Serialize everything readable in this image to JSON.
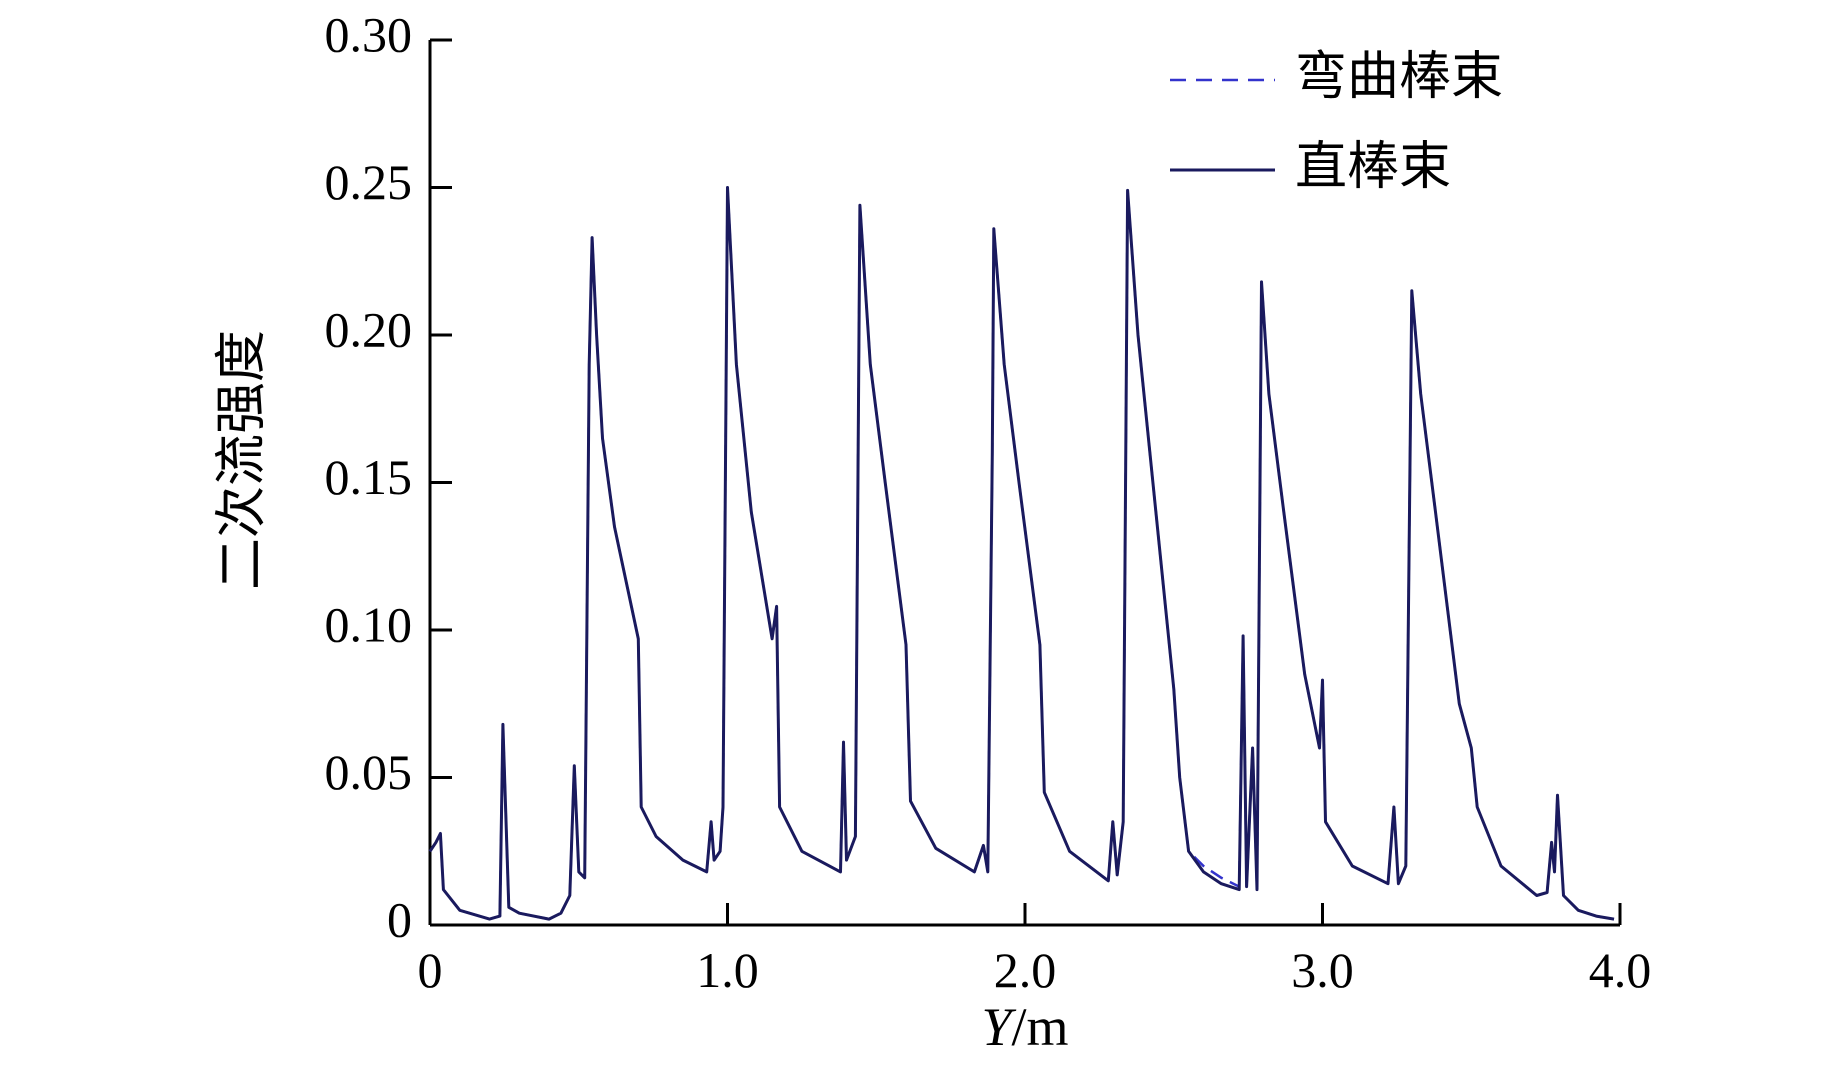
{
  "chart_data": {
    "type": "line",
    "xlabel_var": "Y",
    "xlabel_unit": "/m",
    "ylabel": "二次流强度",
    "xlim": [
      0,
      4.0
    ],
    "ylim": [
      0,
      0.3
    ],
    "xticks": [
      0,
      1.0,
      2.0,
      3.0,
      4.0
    ],
    "xtick_labels": [
      "0",
      "1.0",
      "2.0",
      "3.0",
      "4.0"
    ],
    "yticks": [
      0,
      0.05,
      0.1,
      0.15,
      0.2,
      0.25,
      0.3
    ],
    "ytick_labels": [
      "0",
      "0.05",
      "0.10",
      "0.15",
      "0.20",
      "0.25",
      "0.30"
    ],
    "grid": false,
    "legend_position": "top-right",
    "series": [
      {
        "name": "弯曲棒束",
        "style": "dashed",
        "color": "#3333cc",
        "points": [
          [
            0.0,
            0.025
          ],
          [
            0.02,
            0.028
          ],
          [
            0.035,
            0.031
          ],
          [
            0.045,
            0.012
          ],
          [
            0.1,
            0.005
          ],
          [
            0.2,
            0.002
          ],
          [
            0.235,
            0.003
          ],
          [
            0.245,
            0.068
          ],
          [
            0.265,
            0.006
          ],
          [
            0.3,
            0.004
          ],
          [
            0.4,
            0.002
          ],
          [
            0.44,
            0.004
          ],
          [
            0.47,
            0.01
          ],
          [
            0.485,
            0.054
          ],
          [
            0.5,
            0.018
          ],
          [
            0.52,
            0.016
          ],
          [
            0.535,
            0.19
          ],
          [
            0.545,
            0.233
          ],
          [
            0.56,
            0.2
          ],
          [
            0.58,
            0.165
          ],
          [
            0.62,
            0.135
          ],
          [
            0.7,
            0.097
          ],
          [
            0.71,
            0.04
          ],
          [
            0.76,
            0.03
          ],
          [
            0.85,
            0.022
          ],
          [
            0.93,
            0.018
          ],
          [
            0.945,
            0.035
          ],
          [
            0.955,
            0.022
          ],
          [
            0.975,
            0.025
          ],
          [
            0.985,
            0.04
          ],
          [
            1.0,
            0.25
          ],
          [
            1.03,
            0.19
          ],
          [
            1.08,
            0.14
          ],
          [
            1.15,
            0.097
          ],
          [
            1.165,
            0.108
          ],
          [
            1.175,
            0.04
          ],
          [
            1.25,
            0.025
          ],
          [
            1.38,
            0.018
          ],
          [
            1.39,
            0.062
          ],
          [
            1.4,
            0.022
          ],
          [
            1.43,
            0.03
          ],
          [
            1.445,
            0.244
          ],
          [
            1.48,
            0.19
          ],
          [
            1.53,
            0.15
          ],
          [
            1.6,
            0.095
          ],
          [
            1.615,
            0.042
          ],
          [
            1.7,
            0.026
          ],
          [
            1.83,
            0.018
          ],
          [
            1.86,
            0.027
          ],
          [
            1.875,
            0.018
          ],
          [
            1.89,
            0.16
          ],
          [
            1.895,
            0.236
          ],
          [
            1.93,
            0.19
          ],
          [
            1.98,
            0.15
          ],
          [
            2.05,
            0.095
          ],
          [
            2.065,
            0.045
          ],
          [
            2.15,
            0.025
          ],
          [
            2.28,
            0.015
          ],
          [
            2.295,
            0.035
          ],
          [
            2.31,
            0.017
          ],
          [
            2.33,
            0.035
          ],
          [
            2.345,
            0.249
          ],
          [
            2.38,
            0.2
          ],
          [
            2.43,
            0.15
          ],
          [
            2.5,
            0.08
          ],
          [
            2.52,
            0.05
          ],
          [
            2.55,
            0.025
          ],
          [
            2.6,
            0.02
          ],
          [
            2.66,
            0.016
          ],
          [
            2.72,
            0.013
          ],
          [
            2.733,
            0.098
          ],
          [
            2.745,
            0.013
          ],
          [
            2.765,
            0.06
          ],
          [
            2.78,
            0.012
          ],
          [
            2.795,
            0.218
          ],
          [
            2.82,
            0.18
          ],
          [
            2.87,
            0.14
          ],
          [
            2.94,
            0.085
          ],
          [
            2.99,
            0.06
          ],
          [
            3.0,
            0.083
          ],
          [
            3.01,
            0.035
          ],
          [
            3.1,
            0.02
          ],
          [
            3.22,
            0.014
          ],
          [
            3.24,
            0.04
          ],
          [
            3.255,
            0.014
          ],
          [
            3.28,
            0.02
          ],
          [
            3.3,
            0.215
          ],
          [
            3.33,
            0.18
          ],
          [
            3.38,
            0.14
          ],
          [
            3.46,
            0.075
          ],
          [
            3.5,
            0.06
          ],
          [
            3.52,
            0.04
          ],
          [
            3.6,
            0.02
          ],
          [
            3.72,
            0.01
          ],
          [
            3.755,
            0.011
          ],
          [
            3.77,
            0.028
          ],
          [
            3.78,
            0.018
          ],
          [
            3.79,
            0.044
          ],
          [
            3.81,
            0.01
          ],
          [
            3.86,
            0.005
          ],
          [
            3.92,
            0.003
          ],
          [
            3.98,
            0.002
          ]
        ]
      },
      {
        "name": "直棒束",
        "style": "solid",
        "color": "#1a1a5e",
        "points": [
          [
            0.0,
            0.025
          ],
          [
            0.02,
            0.028
          ],
          [
            0.035,
            0.031
          ],
          [
            0.045,
            0.012
          ],
          [
            0.1,
            0.005
          ],
          [
            0.2,
            0.002
          ],
          [
            0.235,
            0.003
          ],
          [
            0.245,
            0.068
          ],
          [
            0.265,
            0.006
          ],
          [
            0.3,
            0.004
          ],
          [
            0.4,
            0.002
          ],
          [
            0.44,
            0.004
          ],
          [
            0.47,
            0.01
          ],
          [
            0.485,
            0.054
          ],
          [
            0.5,
            0.018
          ],
          [
            0.52,
            0.016
          ],
          [
            0.535,
            0.19
          ],
          [
            0.545,
            0.233
          ],
          [
            0.56,
            0.2
          ],
          [
            0.58,
            0.165
          ],
          [
            0.62,
            0.135
          ],
          [
            0.7,
            0.097
          ],
          [
            0.71,
            0.04
          ],
          [
            0.76,
            0.03
          ],
          [
            0.85,
            0.022
          ],
          [
            0.93,
            0.018
          ],
          [
            0.945,
            0.035
          ],
          [
            0.955,
            0.022
          ],
          [
            0.975,
            0.025
          ],
          [
            0.985,
            0.04
          ],
          [
            1.0,
            0.25
          ],
          [
            1.03,
            0.19
          ],
          [
            1.08,
            0.14
          ],
          [
            1.15,
            0.097
          ],
          [
            1.165,
            0.108
          ],
          [
            1.175,
            0.04
          ],
          [
            1.25,
            0.025
          ],
          [
            1.38,
            0.018
          ],
          [
            1.39,
            0.062
          ],
          [
            1.4,
            0.022
          ],
          [
            1.43,
            0.03
          ],
          [
            1.445,
            0.244
          ],
          [
            1.48,
            0.19
          ],
          [
            1.53,
            0.15
          ],
          [
            1.6,
            0.095
          ],
          [
            1.615,
            0.042
          ],
          [
            1.7,
            0.026
          ],
          [
            1.83,
            0.018
          ],
          [
            1.86,
            0.027
          ],
          [
            1.875,
            0.018
          ],
          [
            1.89,
            0.16
          ],
          [
            1.895,
            0.236
          ],
          [
            1.93,
            0.19
          ],
          [
            1.98,
            0.15
          ],
          [
            2.05,
            0.095
          ],
          [
            2.065,
            0.045
          ],
          [
            2.15,
            0.025
          ],
          [
            2.28,
            0.015
          ],
          [
            2.295,
            0.035
          ],
          [
            2.31,
            0.017
          ],
          [
            2.33,
            0.035
          ],
          [
            2.345,
            0.249
          ],
          [
            2.38,
            0.2
          ],
          [
            2.43,
            0.15
          ],
          [
            2.5,
            0.08
          ],
          [
            2.52,
            0.05
          ],
          [
            2.55,
            0.025
          ],
          [
            2.6,
            0.018
          ],
          [
            2.66,
            0.014
          ],
          [
            2.72,
            0.012
          ],
          [
            2.733,
            0.098
          ],
          [
            2.745,
            0.013
          ],
          [
            2.765,
            0.06
          ],
          [
            2.78,
            0.012
          ],
          [
            2.795,
            0.218
          ],
          [
            2.82,
            0.18
          ],
          [
            2.87,
            0.14
          ],
          [
            2.94,
            0.085
          ],
          [
            2.99,
            0.06
          ],
          [
            3.0,
            0.083
          ],
          [
            3.01,
            0.035
          ],
          [
            3.1,
            0.02
          ],
          [
            3.22,
            0.014
          ],
          [
            3.24,
            0.04
          ],
          [
            3.255,
            0.014
          ],
          [
            3.28,
            0.02
          ],
          [
            3.3,
            0.215
          ],
          [
            3.33,
            0.18
          ],
          [
            3.38,
            0.14
          ],
          [
            3.46,
            0.075
          ],
          [
            3.5,
            0.06
          ],
          [
            3.52,
            0.04
          ],
          [
            3.6,
            0.02
          ],
          [
            3.72,
            0.01
          ],
          [
            3.755,
            0.011
          ],
          [
            3.77,
            0.028
          ],
          [
            3.78,
            0.018
          ],
          [
            3.79,
            0.044
          ],
          [
            3.81,
            0.01
          ],
          [
            3.86,
            0.005
          ],
          [
            3.92,
            0.003
          ],
          [
            3.98,
            0.002
          ]
        ]
      }
    ]
  }
}
